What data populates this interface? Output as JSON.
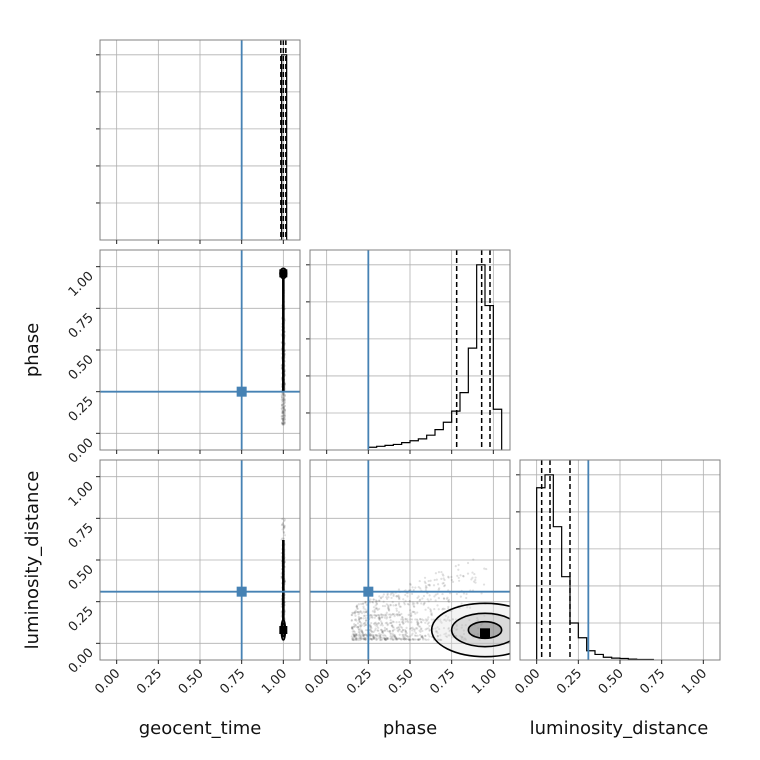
{
  "chart_data": {
    "type": "corner",
    "parameters": [
      {
        "key": "geocent_time",
        "label": "geocent_time",
        "range": [
          -0.1,
          1.1
        ]
      },
      {
        "key": "phase",
        "label": "phase",
        "range": [
          -0.1,
          1.1
        ]
      },
      {
        "key": "luminosity_distance",
        "label": "luminosity_distance",
        "range": [
          -0.1,
          1.1
        ]
      }
    ],
    "ticks": [
      0.0,
      0.25,
      0.5,
      0.75,
      1.0
    ],
    "tick_labels": [
      "0.00",
      "0.25",
      "0.50",
      "0.75",
      "1.00"
    ],
    "grid": true,
    "truths": {
      "geocent_time": 0.75,
      "phase": 0.25,
      "luminosity_distance": 0.31
    },
    "truth_color": "#4682b4",
    "hist_color": "#000000",
    "histograms": {
      "geocent_time": {
        "bins": [
          [
            0.975,
            0.99,
            0.0
          ],
          [
            0.99,
            1.0,
            1.0
          ],
          [
            1.0,
            1.02,
            1.0
          ],
          [
            1.02,
            1.03,
            0.0
          ]
        ],
        "quantiles": [
          0.985,
          1.0,
          1.015
        ]
      },
      "phase": {
        "bins": [
          [
            0.25,
            0.3,
            0.015
          ],
          [
            0.3,
            0.35,
            0.02
          ],
          [
            0.35,
            0.4,
            0.025
          ],
          [
            0.4,
            0.45,
            0.03
          ],
          [
            0.45,
            0.5,
            0.04
          ],
          [
            0.5,
            0.55,
            0.05
          ],
          [
            0.55,
            0.6,
            0.06
          ],
          [
            0.6,
            0.65,
            0.08
          ],
          [
            0.65,
            0.7,
            0.11
          ],
          [
            0.7,
            0.75,
            0.15
          ],
          [
            0.75,
            0.8,
            0.21
          ],
          [
            0.8,
            0.85,
            0.31
          ],
          [
            0.85,
            0.9,
            0.55
          ],
          [
            0.9,
            0.95,
            1.0
          ],
          [
            0.95,
            1.0,
            0.78
          ],
          [
            1.0,
            1.05,
            0.22
          ]
        ],
        "quantiles": [
          0.78,
          0.93,
          0.98
        ]
      },
      "luminosity_distance": {
        "bins": [
          [
            0.0,
            0.05,
            0.93
          ],
          [
            0.05,
            0.1,
            1.0
          ],
          [
            0.1,
            0.15,
            0.72
          ],
          [
            0.15,
            0.2,
            0.45
          ],
          [
            0.2,
            0.25,
            0.2
          ],
          [
            0.25,
            0.3,
            0.12
          ],
          [
            0.3,
            0.35,
            0.05
          ],
          [
            0.35,
            0.4,
            0.03
          ],
          [
            0.4,
            0.45,
            0.015
          ],
          [
            0.45,
            0.5,
            0.01
          ],
          [
            0.5,
            0.55,
            0.008
          ],
          [
            0.55,
            0.6,
            0.005
          ],
          [
            0.6,
            0.7,
            0.003
          ]
        ],
        "quantiles": [
          0.03,
          0.08,
          0.2
        ]
      }
    },
    "contours_2d": {
      "phase_vs_geocent_time": {
        "center": [
          1.0,
          0.96
        ],
        "tail_y": [
          0.05,
          0.96
        ],
        "levels": [
          [
            0.02,
            0.03
          ],
          [
            0.013,
            0.018
          ],
          [
            0.008,
            0.008
          ]
        ]
      },
      "luminosity_distance_vs_geocent_time": {
        "center": [
          1.0,
          0.08
        ],
        "tail_y": [
          0.05,
          0.75
        ],
        "levels": [
          [
            0.012,
            0.06
          ],
          [
            0.008,
            0.04
          ],
          [
            0.005,
            0.02
          ]
        ]
      },
      "luminosity_distance_vs_phase": {
        "center": [
          0.95,
          0.08
        ],
        "levels": [
          [
            0.32,
            0.16
          ],
          [
            0.2,
            0.1
          ],
          [
            0.1,
            0.05
          ]
        ],
        "peak": [
          0.95,
          0.06
        ]
      }
    }
  }
}
